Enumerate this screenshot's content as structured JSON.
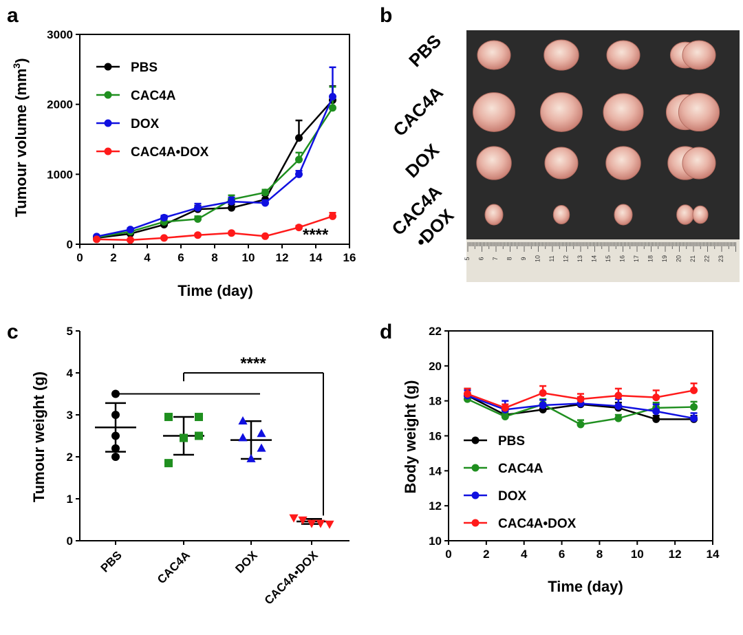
{
  "colors": {
    "PBS": "#000000",
    "CAC4A": "#1f8f1f",
    "DOX": "#1010e0",
    "CAC4A•DOX": "#ff1a1a"
  },
  "chart_data": [
    {
      "panel": "a",
      "type": "line",
      "xlabel": "Time (day)",
      "ylabel_prefix": "Tumour volume (mm",
      "ylabel_sup": "3",
      "ylabel_suffix": ")",
      "xlim": [
        0,
        16
      ],
      "ylim": [
        0,
        3000
      ],
      "xticks": [
        0,
        2,
        4,
        6,
        8,
        10,
        12,
        14,
        16
      ],
      "yticks": [
        0,
        1000,
        2000,
        3000
      ],
      "x": [
        1,
        3,
        5,
        7,
        9,
        11,
        13,
        15
      ],
      "series": [
        {
          "name": "PBS",
          "values": [
            90,
            150,
            280,
            500,
            520,
            640,
            1520,
            2060
          ],
          "err": [
            15,
            20,
            30,
            50,
            50,
            60,
            250,
            200
          ]
        },
        {
          "name": "CAC4A",
          "values": [
            100,
            180,
            320,
            360,
            640,
            740,
            1210,
            1950
          ],
          "err": [
            15,
            20,
            30,
            40,
            60,
            40,
            100,
            300
          ]
        },
        {
          "name": "DOX",
          "values": [
            110,
            210,
            380,
            520,
            610,
            590,
            1000,
            2110
          ],
          "err": [
            15,
            20,
            30,
            60,
            60,
            40,
            50,
            420
          ]
        },
        {
          "name": "CAC4A•DOX",
          "values": [
            70,
            60,
            90,
            130,
            160,
            115,
            240,
            400
          ],
          "err": [
            10,
            10,
            15,
            20,
            20,
            15,
            25,
            50
          ]
        }
      ],
      "legend": [
        "PBS",
        "CAC4A",
        "DOX",
        "CAC4A•DOX"
      ],
      "legend_position": "top-left",
      "annotation": "****"
    },
    {
      "panel": "c",
      "type": "scatter",
      "ylabel": "Tumour weight (g)",
      "ylim": [
        0,
        5
      ],
      "yticks": [
        0,
        1,
        2,
        3,
        4,
        5
      ],
      "categories": [
        "PBS",
        "CAC4A",
        "DOX",
        "CAC4A•DOX"
      ],
      "series": [
        {
          "name": "PBS",
          "marker": "circle",
          "points": [
            3.5,
            3.0,
            2.5,
            2.2,
            2.0
          ],
          "mean": 2.7,
          "sd": 0.58
        },
        {
          "name": "CAC4A",
          "marker": "square",
          "points": [
            2.95,
            2.95,
            2.5,
            2.45,
            1.85
          ],
          "mean": 2.5,
          "sd": 0.45
        },
        {
          "name": "DOX",
          "marker": "triangle-up",
          "points": [
            2.85,
            2.55,
            2.45,
            2.2,
            1.95
          ],
          "mean": 2.4,
          "sd": 0.45
        },
        {
          "name": "CAC4A•DOX",
          "marker": "triangle-down",
          "points": [
            0.55,
            0.5,
            0.42,
            0.42,
            0.4
          ],
          "mean": 0.46,
          "sd": 0.06
        }
      ],
      "annotation": "****"
    },
    {
      "panel": "d",
      "type": "line",
      "xlabel": "Time (day)",
      "ylabel": "Body weight (g)",
      "xlim": [
        0,
        14
      ],
      "ylim": [
        10,
        22
      ],
      "xticks": [
        0,
        2,
        4,
        6,
        8,
        10,
        12,
        14
      ],
      "yticks": [
        10,
        12,
        14,
        16,
        18,
        20,
        22
      ],
      "x": [
        1,
        3,
        5,
        7,
        9,
        11,
        13
      ],
      "series": [
        {
          "name": "PBS",
          "values": [
            18.3,
            17.2,
            17.5,
            17.8,
            17.6,
            16.95,
            16.95
          ],
          "err": [
            0.4,
            0.2,
            0.2,
            0.4,
            0.3,
            0.2,
            0.2
          ]
        },
        {
          "name": "CAC4A",
          "values": [
            18.1,
            17.1,
            17.8,
            16.65,
            17.0,
            17.6,
            17.65
          ],
          "err": [
            0.3,
            0.2,
            0.3,
            0.25,
            0.2,
            0.3,
            0.3
          ]
        },
        {
          "name": "DOX",
          "values": [
            18.3,
            17.5,
            17.75,
            17.85,
            17.7,
            17.4,
            17.0
          ],
          "err": [
            0.3,
            0.5,
            0.3,
            0.3,
            0.4,
            0.4,
            0.3
          ]
        },
        {
          "name": "CAC4A•DOX",
          "values": [
            18.4,
            17.6,
            18.45,
            18.1,
            18.3,
            18.2,
            18.6
          ],
          "err": [
            0.3,
            0.2,
            0.4,
            0.3,
            0.4,
            0.4,
            0.4
          ]
        }
      ],
      "legend": [
        "PBS",
        "CAC4A",
        "DOX",
        "CAC4A•DOX"
      ],
      "legend_position": "lower-left"
    }
  ],
  "panel_b": {
    "row_labels": [
      "PBS",
      "CAC4A",
      "DOX",
      "CAC4A",
      "•DOX"
    ],
    "ruler_labels": [
      "5",
      "6",
      "7",
      "8",
      "9",
      "10",
      "11",
      "12",
      "13",
      "14",
      "15",
      "16",
      "17",
      "18",
      "19",
      "20",
      "21",
      "22",
      "23"
    ]
  },
  "panel_letters": [
    "a",
    "b",
    "c",
    "d"
  ]
}
